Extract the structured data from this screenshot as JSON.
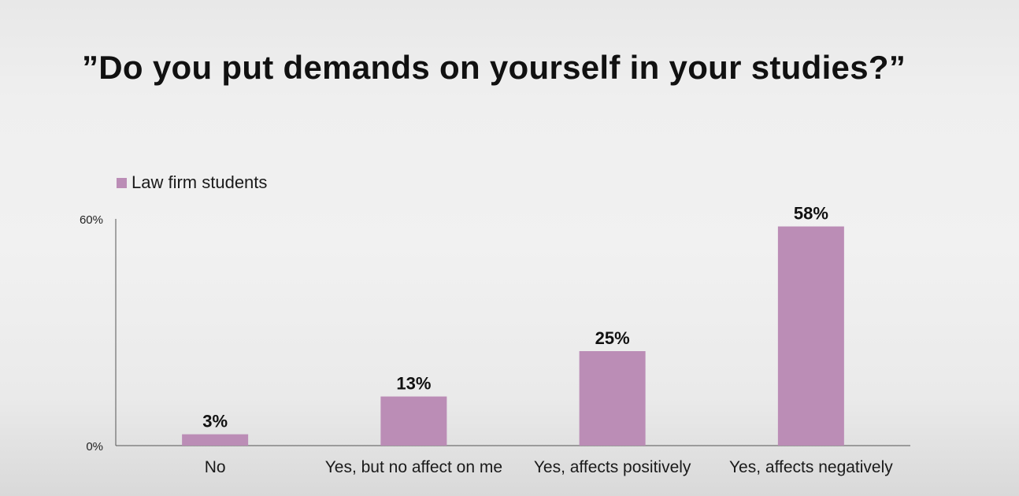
{
  "title": "”Do you put demands on yourself in your studies?”",
  "colors": {
    "bar": "#bb8db6",
    "axis": "#555555",
    "text": "#111111"
  },
  "chart_data": {
    "type": "bar",
    "categories": [
      "No",
      "Yes, but no affect on me",
      "Yes, affects positively",
      "Yes, affects negatively"
    ],
    "series": [
      {
        "name": "Law firm students",
        "values": [
          3,
          13,
          25,
          58
        ]
      }
    ],
    "data_labels": [
      "3%",
      "13%",
      "25%",
      "58%"
    ],
    "y_ticks": [
      {
        "value": 0,
        "label": "0%"
      },
      {
        "value": 60,
        "label": "60%"
      }
    ],
    "ylim": [
      0,
      60
    ],
    "grid": false,
    "legend_position": "top-left",
    "xlabel": "",
    "ylabel": ""
  }
}
